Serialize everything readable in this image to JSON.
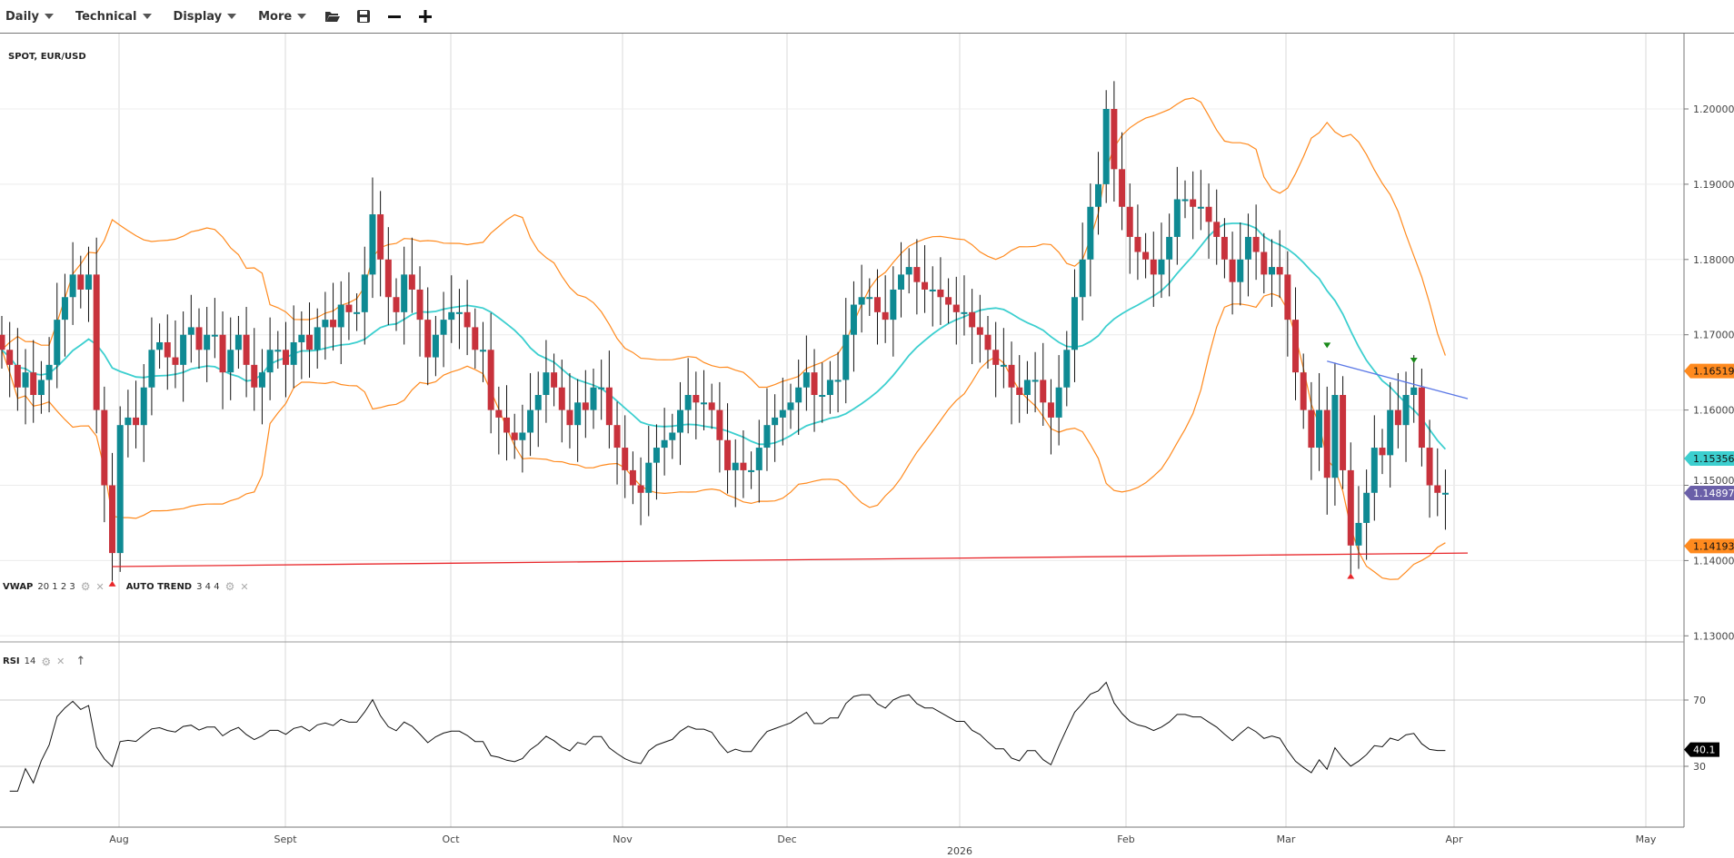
{
  "toolbar": {
    "menus": [
      "Daily",
      "Technical",
      "Display",
      "More"
    ],
    "icons": [
      "folder-open-icon",
      "save-icon",
      "zoom-out-icon",
      "zoom-in-icon"
    ]
  },
  "main_pane": {
    "symbol_label": "SPOT, EUR/USD",
    "indicators": [
      {
        "name": "VWAP",
        "params": "20 1 2 3"
      },
      {
        "name": "AUTO TREND",
        "params": "3 4 4"
      }
    ]
  },
  "rsi_pane": {
    "name": "RSI",
    "params": "14",
    "last_value": "40.1"
  },
  "colors": {
    "up_candle": "#0e8a93",
    "down_candle": "#c8323c",
    "bands": "#ff8a1e",
    "mid_line": "#3ccfcf",
    "support_trend": "#e8262a",
    "resistance_trend": "#5b78e6",
    "last_price_tag": "#6a5fa8",
    "rsi_line": "#111111"
  },
  "chart_data": [
    {
      "type": "candlestick",
      "title": "SPOT, EUR/USD",
      "x_tick_labels": [
        "Aug",
        "Sept",
        "Oct",
        "Nov",
        "Dec",
        "2026",
        "Feb",
        "Mar",
        "Apr",
        "May"
      ],
      "y_tick_labels": [
        "1.20000",
        "1.19000",
        "1.18000",
        "1.17000",
        "1.16000",
        "1.15000",
        "1.14000",
        "1.13000"
      ],
      "ylim": [
        1.128,
        1.208
      ],
      "grid": true,
      "closes": [
        1.168,
        1.166,
        1.163,
        1.165,
        1.162,
        1.164,
        1.166,
        1.172,
        1.175,
        1.178,
        1.176,
        1.178,
        1.16,
        1.15,
        1.141,
        1.158,
        1.159,
        1.158,
        1.163,
        1.168,
        1.169,
        1.167,
        1.166,
        1.17,
        1.171,
        1.168,
        1.17,
        1.17,
        1.165,
        1.168,
        1.17,
        1.166,
        1.163,
        1.165,
        1.168,
        1.168,
        1.166,
        1.169,
        1.17,
        1.168,
        1.171,
        1.172,
        1.171,
        1.174,
        1.173,
        1.173,
        1.178,
        1.186,
        1.18,
        1.175,
        1.173,
        1.178,
        1.176,
        1.172,
        1.167,
        1.17,
        1.172,
        1.173,
        1.173,
        1.171,
        1.168,
        1.168,
        1.16,
        1.159,
        1.157,
        1.156,
        1.157,
        1.16,
        1.162,
        1.165,
        1.163,
        1.16,
        1.158,
        1.161,
        1.16,
        1.163,
        1.163,
        1.158,
        1.155,
        1.152,
        1.15,
        1.149,
        1.153,
        1.155,
        1.156,
        1.157,
        1.16,
        1.162,
        1.161,
        1.161,
        1.16,
        1.156,
        1.152,
        1.153,
        1.152,
        1.152,
        1.155,
        1.158,
        1.159,
        1.16,
        1.161,
        1.163,
        1.165,
        1.162,
        1.162,
        1.164,
        1.164,
        1.17,
        1.174,
        1.175,
        1.175,
        1.173,
        1.172,
        1.176,
        1.178,
        1.179,
        1.177,
        1.176,
        1.176,
        1.175,
        1.174,
        1.173,
        1.173,
        1.171,
        1.17,
        1.168,
        1.166,
        1.166,
        1.163,
        1.162,
        1.164,
        1.164,
        1.161,
        1.159,
        1.163,
        1.168,
        1.175,
        1.18,
        1.187,
        1.19,
        1.2,
        1.192,
        1.187,
        1.183,
        1.181,
        1.18,
        1.178,
        1.18,
        1.183,
        1.188,
        1.188,
        1.187,
        1.187,
        1.185,
        1.183,
        1.18,
        1.177,
        1.18,
        1.183,
        1.181,
        1.178,
        1.179,
        1.178,
        1.172,
        1.165,
        1.16,
        1.155,
        1.16,
        1.151,
        1.162,
        1.152,
        1.142,
        1.145,
        1.149,
        1.155,
        1.154,
        1.16,
        1.158,
        1.162,
        1.163,
        1.155,
        1.15,
        1.149,
        1.149
      ],
      "overlays": {
        "upper_band_last": "1.16519",
        "mid_line_last": "1.15356",
        "last_price": "1.148970",
        "lower_band_last": "1.14193",
        "support_trendline": [
          1.1392,
          1.141
        ],
        "resistance_trendline": [
          1.1665,
          1.1615
        ]
      }
    },
    {
      "type": "line",
      "title": "RSI 14",
      "y_tick_labels": [
        "70",
        "30"
      ],
      "levels": [
        70,
        30
      ],
      "ylim": [
        10,
        90
      ],
      "last_value": 40.1
    }
  ]
}
